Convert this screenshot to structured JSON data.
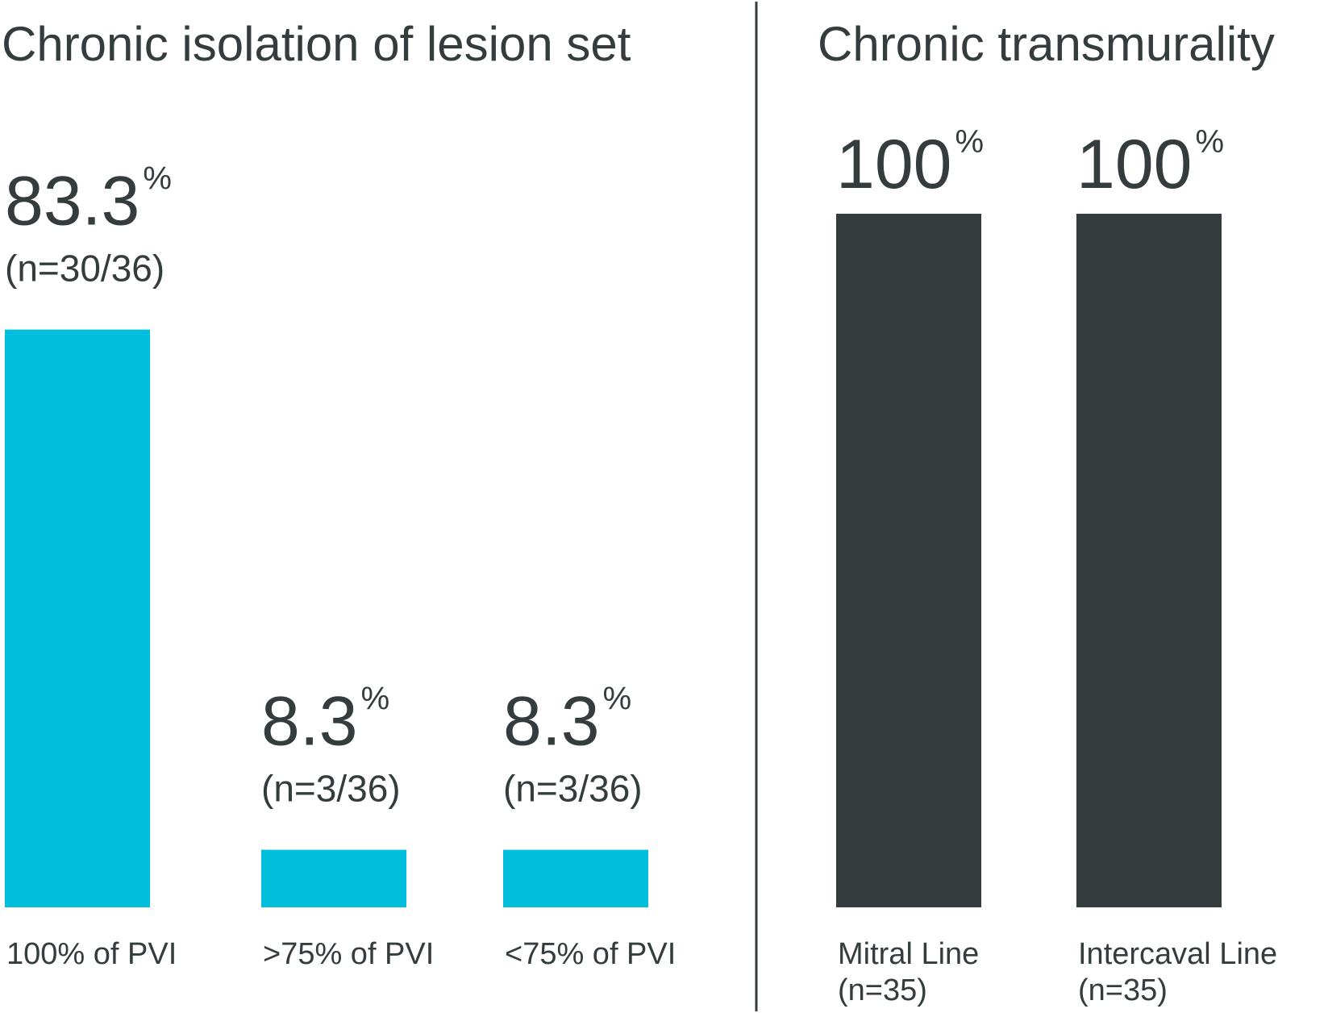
{
  "chart_data": [
    {
      "type": "bar",
      "title": "Chronic isolation of lesion set",
      "categories": [
        "100% of PVI",
        ">75% of PVI",
        "<75% of PVI"
      ],
      "values": [
        83.3,
        8.3,
        8.3
      ],
      "value_labels": [
        "83.3",
        "8.3",
        "8.3"
      ],
      "value_unit": "%",
      "counts": [
        "(n=30/36)",
        "(n=3/36)",
        "(n=3/36)"
      ],
      "category_sublabels": [
        "",
        "",
        ""
      ],
      "ylim": [
        0,
        100
      ],
      "color": "#00bedc",
      "grid": false
    },
    {
      "type": "bar",
      "title": "Chronic transmurality",
      "categories": [
        "Mitral Line",
        "Intercaval Line"
      ],
      "values": [
        100,
        100
      ],
      "value_labels": [
        "100",
        "100"
      ],
      "value_unit": "%",
      "counts": [
        "",
        ""
      ],
      "category_sublabels": [
        "(n=35)",
        "(n=35)"
      ],
      "ylim": [
        0,
        100
      ],
      "color": "#343c3e",
      "grid": false
    }
  ],
  "colors": {
    "text": "#343c3e",
    "divider": "#343c3e",
    "background": "#ffffff"
  }
}
